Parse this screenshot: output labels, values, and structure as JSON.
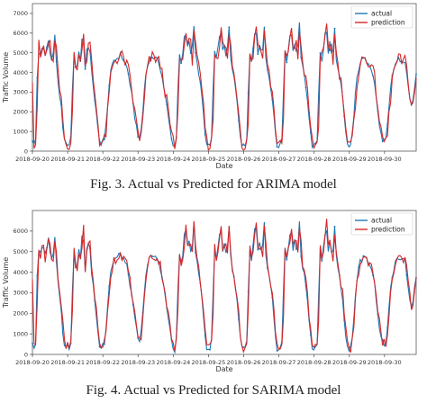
{
  "chart_data": [
    {
      "type": "line",
      "title": "",
      "xlabel": "Date",
      "ylabel": "Traffic Volume",
      "ylim": [
        0,
        7500
      ],
      "yticks": [
        0,
        1000,
        2000,
        3000,
        4000,
        5000,
        6000,
        7000
      ],
      "xticks": [
        "2018-09-20",
        "2018-09-21",
        "2018-09-22",
        "2018-09-23",
        "2018-09-24",
        "2018-09-25",
        "2018-09-26",
        "2018-09-27",
        "2018-09-28",
        "2018-09-29",
        "2018-09-30"
      ],
      "legend_position": "top-right",
      "series": [
        {
          "name": "actual",
          "color": "#1f77b4",
          "profile": [
            [
              0.0,
              600
            ],
            [
              0.04,
              300
            ],
            [
              0.09,
              500
            ],
            [
              0.16,
              5400
            ],
            [
              0.2,
              4700
            ],
            [
              0.25,
              5000
            ],
            [
              0.31,
              5400
            ],
            [
              0.35,
              4700
            ],
            [
              0.4,
              5200
            ],
            [
              0.46,
              5800
            ],
            [
              0.52,
              4500
            ],
            [
              0.58,
              4800
            ],
            [
              0.64,
              5900
            ],
            [
              0.7,
              4000
            ],
            [
              0.76,
              3000
            ],
            [
              0.82,
              2200
            ],
            [
              0.88,
              700
            ],
            [
              0.94,
              300
            ],
            [
              1.0,
              400
            ],
            [
              1.05,
              300
            ],
            [
              1.1,
              700
            ],
            [
              1.16,
              5000
            ],
            [
              1.21,
              4500
            ],
            [
              1.26,
              4000
            ],
            [
              1.32,
              5200
            ],
            [
              1.37,
              4500
            ],
            [
              1.43,
              6400
            ],
            [
              1.49,
              4000
            ],
            [
              1.55,
              5300
            ],
            [
              1.62,
              5400
            ],
            [
              1.68,
              4000
            ],
            [
              1.75,
              3000
            ],
            [
              1.82,
              1800
            ],
            [
              1.89,
              500
            ],
            [
              1.95,
              400
            ],
            [
              2.0,
              600
            ],
            [
              2.05,
              500
            ],
            [
              2.12,
              2000
            ],
            [
              2.2,
              3800
            ],
            [
              2.3,
              4600
            ],
            [
              2.4,
              4700
            ],
            [
              2.5,
              4900
            ],
            [
              2.6,
              4600
            ],
            [
              2.7,
              4200
            ],
            [
              2.8,
              3100
            ],
            [
              2.9,
              1800
            ],
            [
              3.0,
              800
            ],
            [
              3.05,
              500
            ],
            [
              3.12,
              1600
            ],
            [
              3.2,
              3700
            ],
            [
              3.3,
              4600
            ],
            [
              3.4,
              4800
            ],
            [
              3.5,
              4700
            ],
            [
              3.6,
              4500
            ],
            [
              3.7,
              3600
            ],
            [
              3.8,
              2500
            ],
            [
              3.9,
              1200
            ],
            [
              4.0,
              250
            ],
            [
              4.05,
              200
            ],
            [
              4.1,
              1000
            ],
            [
              4.16,
              5000
            ],
            [
              4.22,
              4400
            ],
            [
              4.28,
              5000
            ],
            [
              4.34,
              6300
            ],
            [
              4.4,
              5200
            ],
            [
              4.46,
              5700
            ],
            [
              4.52,
              4600
            ],
            [
              4.58,
              6700
            ],
            [
              4.64,
              4800
            ],
            [
              4.72,
              4000
            ],
            [
              4.8,
              3000
            ],
            [
              4.88,
              1400
            ],
            [
              4.94,
              300
            ],
            [
              5.0,
              250
            ],
            [
              5.05,
              300
            ],
            [
              5.1,
              800
            ],
            [
              5.16,
              5200
            ],
            [
              5.22,
              4600
            ],
            [
              5.28,
              5300
            ],
            [
              5.34,
              6400
            ],
            [
              5.4,
              5000
            ],
            [
              5.46,
              5500
            ],
            [
              5.52,
              4500
            ],
            [
              5.58,
              6500
            ],
            [
              5.64,
              4400
            ],
            [
              5.72,
              3800
            ],
            [
              5.8,
              2800
            ],
            [
              5.88,
              1200
            ],
            [
              5.94,
              300
            ],
            [
              6.0,
              250
            ],
            [
              6.05,
              300
            ],
            [
              6.1,
              800
            ],
            [
              6.16,
              5200
            ],
            [
              6.22,
              4500
            ],
            [
              6.28,
              5400
            ],
            [
              6.34,
              6500
            ],
            [
              6.4,
              5000
            ],
            [
              6.46,
              5600
            ],
            [
              6.52,
              4600
            ],
            [
              6.58,
              6600
            ],
            [
              6.64,
              4400
            ],
            [
              6.72,
              3800
            ],
            [
              6.8,
              2900
            ],
            [
              6.88,
              1300
            ],
            [
              6.94,
              300
            ],
            [
              7.0,
              250
            ],
            [
              7.05,
              300
            ],
            [
              7.1,
              800
            ],
            [
              7.16,
              5300
            ],
            [
              7.22,
              4600
            ],
            [
              7.28,
              5300
            ],
            [
              7.34,
              6400
            ],
            [
              7.4,
              5000
            ],
            [
              7.46,
              5600
            ],
            [
              7.52,
              4700
            ],
            [
              7.58,
              6600
            ],
            [
              7.64,
              4500
            ],
            [
              7.72,
              3900
            ],
            [
              7.8,
              2900
            ],
            [
              7.88,
              1200
            ],
            [
              7.94,
              300
            ],
            [
              8.0,
              250
            ],
            [
              8.05,
              300
            ],
            [
              8.1,
              700
            ],
            [
              8.16,
              5200
            ],
            [
              8.22,
              4600
            ],
            [
              8.28,
              5400
            ],
            [
              8.34,
              6400
            ],
            [
              8.4,
              5000
            ],
            [
              8.46,
              5600
            ],
            [
              8.52,
              4500
            ],
            [
              8.58,
              6300
            ],
            [
              8.64,
              4400
            ],
            [
              8.72,
              3800
            ],
            [
              8.8,
              2900
            ],
            [
              8.88,
              1200
            ],
            [
              8.94,
              300
            ],
            [
              9.0,
              200
            ],
            [
              9.05,
              400
            ],
            [
              9.12,
              1500
            ],
            [
              9.2,
              3500
            ],
            [
              9.3,
              4500
            ],
            [
              9.4,
              4700
            ],
            [
              9.5,
              4600
            ],
            [
              9.6,
              4400
            ],
            [
              9.7,
              3700
            ],
            [
              9.8,
              2200
            ],
            [
              9.88,
              900
            ],
            [
              9.94,
              600
            ],
            [
              10.0,
              500
            ],
            [
              10.05,
              600
            ],
            [
              10.12,
              2000
            ],
            [
              10.2,
              3700
            ],
            [
              10.3,
              4400
            ],
            [
              10.4,
              4700
            ],
            [
              10.5,
              4500
            ],
            [
              10.58,
              4600
            ],
            [
              10.66,
              3500
            ],
            [
              10.74,
              2300
            ],
            [
              10.82,
              2700
            ],
            [
              10.9,
              3800
            ]
          ]
        },
        {
          "name": "prediction",
          "color": "#d62728"
        }
      ]
    },
    {
      "type": "line",
      "title": "",
      "xlabel": "Date",
      "ylabel": "Traffic Volume",
      "ylim": [
        0,
        7000
      ],
      "yticks": [
        0,
        1000,
        2000,
        3000,
        4000,
        5000,
        6000
      ],
      "xticks": [
        "2018-09-20",
        "2018-09-21",
        "2018-09-22",
        "2018-09-23",
        "2018-09-24",
        "2018-09-25",
        "2018-09-26",
        "2018-09-27",
        "2018-09-28",
        "2018-09-29",
        "2018-09-30"
      ],
      "legend_position": "top-right",
      "series": [
        {
          "name": "actual",
          "color": "#1f77b4"
        },
        {
          "name": "prediction",
          "color": "#d62728"
        }
      ]
    }
  ],
  "captions": {
    "fig3": "Fig. 3.   Actual vs Predicted for ARIMA model",
    "fig4": "Fig. 4.   Actual vs Predicted for SARIMA model"
  }
}
